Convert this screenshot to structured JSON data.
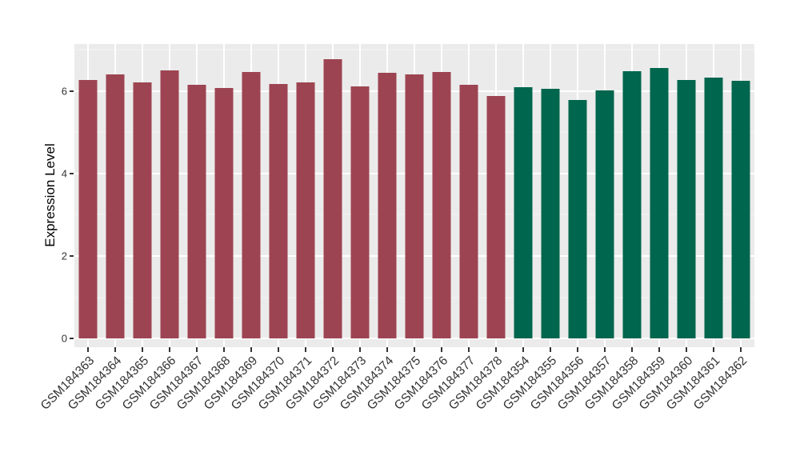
{
  "figure": {
    "background": "#FFFFFF"
  },
  "chart_data": {
    "type": "bar",
    "title": "",
    "xlabel": "",
    "ylabel": "Expression Level",
    "ylim": [
      -0.21,
      7.14
    ],
    "yticks": [
      0,
      2,
      4,
      6
    ],
    "ytick_labels": [
      "0",
      "2",
      "4",
      "6"
    ],
    "minor_yticks": [
      1,
      3,
      5,
      7
    ],
    "grid": true,
    "legend": "none",
    "panel_background": "#EBEBEB",
    "grid_major_color": "#FFFFFF",
    "grid_minor_color": "#F5F5F5",
    "axis_text_color": "#333333",
    "categories": [
      "GSM184363",
      "GSM184364",
      "GSM184365",
      "GSM184366",
      "GSM184367",
      "GSM184368",
      "GSM184369",
      "GSM184370",
      "GSM184371",
      "GSM184372",
      "GSM184373",
      "GSM184374",
      "GSM184375",
      "GSM184376",
      "GSM184377",
      "GSM184378",
      "GSM184354",
      "GSM184355",
      "GSM184356",
      "GSM184357",
      "GSM184358",
      "GSM184359",
      "GSM184360",
      "GSM184361",
      "GSM184362"
    ],
    "values": [
      6.26,
      6.4,
      6.2,
      6.5,
      6.15,
      6.07,
      6.46,
      6.18,
      6.21,
      6.77,
      6.11,
      6.44,
      6.4,
      6.47,
      6.15,
      5.88,
      6.09,
      6.05,
      5.79,
      6.01,
      6.48,
      6.56,
      6.26,
      6.32,
      6.24
    ],
    "bar_colors": [
      "#9D4452",
      "#9D4452",
      "#9D4452",
      "#9D4452",
      "#9D4452",
      "#9D4452",
      "#9D4452",
      "#9D4452",
      "#9D4452",
      "#9D4452",
      "#9D4452",
      "#9D4452",
      "#9D4452",
      "#9D4452",
      "#9D4452",
      "#9D4452",
      "#00664D",
      "#00664D",
      "#00664D",
      "#00664D",
      "#00664D",
      "#00664D",
      "#00664D",
      "#00664D",
      "#00664D"
    ]
  }
}
